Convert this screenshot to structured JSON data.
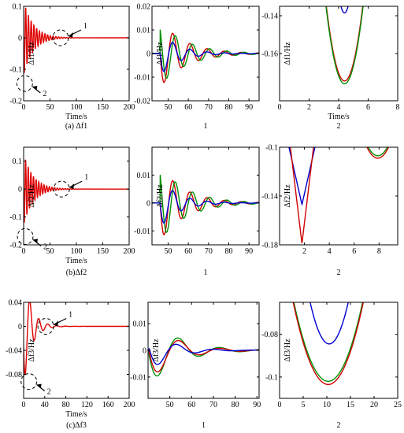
{
  "figure": {
    "rows": [
      {
        "caption": "(a) Δf1",
        "panels": [
          {
            "caption": "",
            "chart_data": {
              "type": "line",
              "xlabel": "Time/s",
              "ylabel": "Δf1/Hz",
              "xlim": [
                0,
                200
              ],
              "ylim": [
                -0.2,
                0.1
              ],
              "xticks": [
                0,
                50,
                100,
                150,
                200
              ],
              "yticks": [
                -0.2,
                -0.1,
                0,
                0.1
              ],
              "ytick_labels": [
                "-0.2",
                "-0.1",
                "0",
                "0.1"
              ],
              "series": [
                {
                  "color": "#e00000",
                  "kind": "osc",
                  "a": 0.12,
                  "tau": 18,
                  "period": 5.2,
                  "phase": 0,
                  "t0": 0,
                  "pre": 0
                }
              ],
              "annotations": [
                {
                  "label": "1",
                  "cx": 70,
                  "cy": 0,
                  "target": "zoom of 45–95 s"
                },
                {
                  "label": "2",
                  "cx": 2,
                  "cy": -0.145,
                  "target": "zoom of first dip"
                }
              ]
            }
          },
          {
            "caption": "1",
            "chart_data": {
              "type": "line",
              "xlabel": "",
              "ylabel": "Δf1/Hz",
              "xlim": [
                42,
                95
              ],
              "ylim": [
                -0.02,
                0.02
              ],
              "xticks": [
                50,
                60,
                70,
                80,
                90
              ],
              "yticks": [
                -0.02,
                -0.01,
                0,
                0.01,
                0.02
              ],
              "ytick_labels": [
                "-0.02",
                "-0.01",
                "0",
                "0.01",
                "0.02"
              ],
              "series": [
                {
                  "color": "#d00000",
                  "kind": "osc",
                  "a": 0.0145,
                  "tau": 12,
                  "period": 8.5,
                  "phase": 0.0,
                  "t0": 46,
                  "pre": 0
                },
                {
                  "color": "#009000",
                  "kind": "osc",
                  "a": 0.0135,
                  "tau": 13,
                  "period": 8.5,
                  "phase": -0.9,
                  "t0": 46,
                  "pre": 0
                },
                {
                  "color": "#0000d0",
                  "kind": "osc",
                  "a": 0.0095,
                  "tau": 9,
                  "period": 8.5,
                  "phase": 0.0,
                  "t0": 46,
                  "pre": 0
                }
              ]
            }
          },
          {
            "caption": "2",
            "chart_data": {
              "type": "line",
              "xlabel": "Time/s",
              "ylabel": "Δf1/Hz",
              "xlim": [
                0,
                8
              ],
              "ylim": [
                -0.185,
                -0.135
              ],
              "xticks": [
                0,
                2,
                4,
                6,
                8
              ],
              "yticks": [
                -0.16,
                -0.14
              ],
              "ytick_labels": [
                "-0.16",
                "-0.14"
              ],
              "series": [
                {
                  "color": "#0000d0",
                  "kind": "parab",
                  "xmin": 4.4,
                  "ymin": -0.1385,
                  "k": 0.06
                },
                {
                  "color": "#d00000",
                  "kind": "parab",
                  "xmin": 4.4,
                  "ymin": -0.1745,
                  "k": 0.026
                },
                {
                  "color": "#009000",
                  "kind": "parab",
                  "xmin": 4.4,
                  "ymin": -0.176,
                  "k": 0.026
                }
              ]
            }
          }
        ]
      },
      {
        "caption": "(b)Δf2",
        "panels": [
          {
            "caption": "",
            "chart_data": {
              "type": "line",
              "xlabel": "Time/s",
              "ylabel": "Δf2/Hz",
              "xlim": [
                0,
                200
              ],
              "ylim": [
                -0.2,
                0.15
              ],
              "xticks": [
                0,
                50,
                100,
                150,
                200
              ],
              "yticks": [
                -0.2,
                -0.1,
                0,
                0.1
              ],
              "ytick_labels": [
                "-0.2",
                "-0.1",
                "0",
                "0.1"
              ],
              "series": [
                {
                  "color": "#e00000",
                  "kind": "osc",
                  "a": 0.13,
                  "tau": 18,
                  "period": 5.0,
                  "phase": 0,
                  "t0": 0,
                  "pre": 0
                }
              ],
              "annotations": [
                {
                  "label": "1",
                  "cx": 72,
                  "cy": 0,
                  "target": "zoom of 45–95 s"
                },
                {
                  "label": "2",
                  "cx": 3,
                  "cy": -0.17,
                  "target": "zoom of first dip"
                }
              ]
            }
          },
          {
            "caption": "1",
            "chart_data": {
              "type": "line",
              "xlabel": "",
              "ylabel": "Δf2/Hz",
              "xlim": [
                42,
                95
              ],
              "ylim": [
                -0.015,
                0.02
              ],
              "xticks": [
                50,
                60,
                70,
                80,
                90
              ],
              "yticks": [
                -0.01,
                0,
                0.01
              ],
              "ytick_labels": [
                "-0.01",
                "0",
                "0.01"
              ],
              "series": [
                {
                  "color": "#d00000",
                  "kind": "osc",
                  "a": 0.0135,
                  "tau": 12,
                  "period": 8.5,
                  "phase": 0.0,
                  "t0": 46,
                  "pre": 0
                },
                {
                  "color": "#009000",
                  "kind": "osc",
                  "a": 0.0135,
                  "tau": 13,
                  "period": 8.5,
                  "phase": -0.9,
                  "t0": 46,
                  "pre": 0
                },
                {
                  "color": "#0000d0",
                  "kind": "osc",
                  "a": 0.009,
                  "tau": 9,
                  "period": 8.5,
                  "phase": 0.0,
                  "t0": 46,
                  "pre": 0
                }
              ]
            }
          },
          {
            "caption": "2",
            "chart_data": {
              "type": "line",
              "xlabel": "",
              "ylabel": "Δf2/Hz",
              "xlim": [
                0,
                9.5
              ],
              "ylim": [
                -0.18,
                -0.1
              ],
              "xticks": [
                2,
                4,
                6,
                8
              ],
              "yticks": [
                -0.18,
                -0.14,
                -0.1
              ],
              "ytick_labels": [
                "-0.18",
                "-0.14",
                "-0.1"
              ],
              "series": [
                {
                  "color": "#0000d0",
                  "kind": "vee",
                  "xmin": 1.8,
                  "ymin": -0.147,
                  "k": 0.045
                },
                {
                  "color": "#d00000",
                  "kind": "vee",
                  "xmin": 1.8,
                  "ymin": -0.179,
                  "k": 0.085
                },
                {
                  "color": "#d00000",
                  "kind": "parab",
                  "xmin": 7.9,
                  "ymin": -0.109,
                  "k": 0.012
                },
                {
                  "color": "#009000",
                  "kind": "parab",
                  "xmin": 7.9,
                  "ymin": -0.107,
                  "k": 0.012
                }
              ]
            }
          }
        ]
      },
      {
        "caption": "(c)Δf3",
        "panels": [
          {
            "caption": "",
            "chart_data": {
              "type": "line",
              "xlabel": "Time/s",
              "ylabel": "Δf3/Hz",
              "xlim": [
                0,
                200
              ],
              "ylim": [
                -0.12,
                0.04
              ],
              "xticks": [
                0,
                40,
                80,
                120,
                160,
                200
              ],
              "yticks": [
                -0.08,
                -0.04,
                0,
                0.04
              ],
              "ytick_labels": [
                "-0.08",
                "-0.04",
                "0",
                "0.04"
              ],
              "series": [
                {
                  "color": "#e00000",
                  "kind": "osc3",
                  "a": 0.1,
                  "tau": 14,
                  "period": 17,
                  "phase": 0,
                  "t0": 0,
                  "pre": 0
                }
              ],
              "annotations": [
                {
                  "label": "1",
                  "cx": 42,
                  "cy": 0,
                  "target": "zoom of 45–95 s"
                },
                {
                  "label": "2",
                  "cx": 10,
                  "cy": -0.092,
                  "target": "zoom of first dip"
                }
              ]
            }
          },
          {
            "caption": "1",
            "chart_data": {
              "type": "line",
              "xlabel": "",
              "ylabel": "Δf3/Hz",
              "xlim": [
                40,
                91
              ],
              "ylim": [
                -0.018,
                0.018
              ],
              "xticks": [
                50,
                60,
                70,
                80,
                90
              ],
              "yticks": [
                -0.01,
                0,
                0.01
              ],
              "ytick_labels": [
                "-0.01",
                "0",
                "0.01"
              ],
              "series": [
                {
                  "color": "#009000",
                  "kind": "osc",
                  "a": 0.013,
                  "tau": 13,
                  "period": 19,
                  "phase": 0.15,
                  "t0": 40.5,
                  "pre": 0
                },
                {
                  "color": "#d00000",
                  "kind": "osc",
                  "a": 0.0115,
                  "tau": 12,
                  "period": 19,
                  "phase": 0.05,
                  "t0": 40.5,
                  "pre": 0
                },
                {
                  "color": "#0000d0",
                  "kind": "osc",
                  "a": 0.008,
                  "tau": 10,
                  "period": 17,
                  "phase": -0.1,
                  "t0": 40.5,
                  "pre": 0
                }
              ]
            }
          },
          {
            "caption": "2",
            "chart_data": {
              "type": "line",
              "xlabel": "",
              "ylabel": "Δf3/Hz",
              "xlim": [
                0,
                25
              ],
              "ylim": [
                -0.11,
                -0.065
              ],
              "xticks": [
                0,
                5,
                10,
                15,
                20,
                25
              ],
              "yticks": [
                -0.1,
                -0.08
              ],
              "ytick_labels": [
                "-0.1",
                "-0.08"
              ],
              "series": [
                {
                  "color": "#0000d0",
                  "kind": "parab",
                  "xmin": 10.5,
                  "ymin": -0.0845,
                  "k": 0.0012
                },
                {
                  "color": "#009000",
                  "kind": "parab",
                  "xmin": 10.3,
                  "ymin": -0.102,
                  "k": 0.0007
                },
                {
                  "color": "#d00000",
                  "kind": "parab",
                  "xmin": 10.3,
                  "ymin": -0.1035,
                  "k": 0.0007
                }
              ]
            }
          }
        ]
      }
    ]
  }
}
